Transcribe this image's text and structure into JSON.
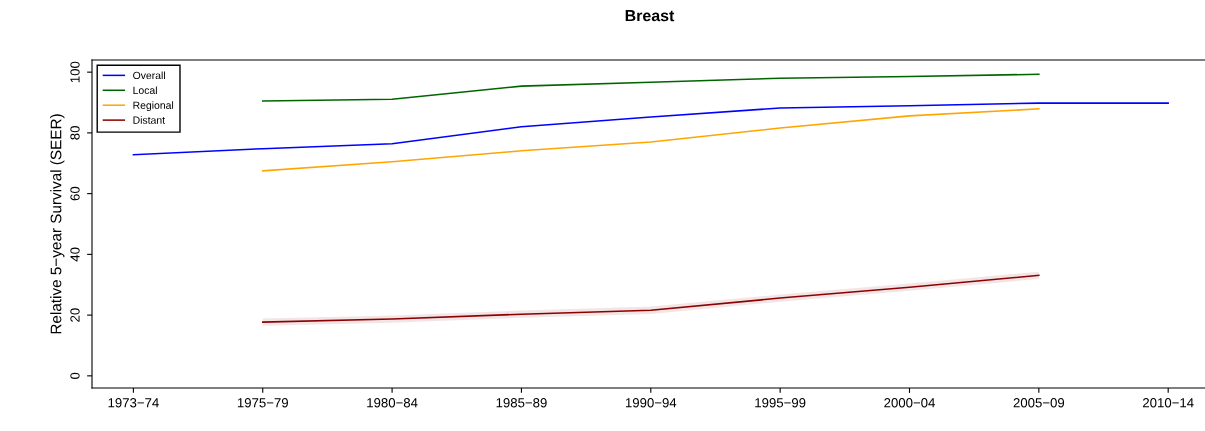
{
  "chart_data": {
    "type": "line",
    "title": "Breast",
    "ylabel": "Relative 5−year Survival (SEER)",
    "categories": [
      "1973−74",
      "1975−79",
      "1980−84",
      "1985−89",
      "1990−94",
      "1995−99",
      "2000−04",
      "2005−09",
      "2010−14"
    ],
    "series": [
      {
        "name": "Overall",
        "color": "#0000ff",
        "values": [
          72.8,
          74.8,
          76.4,
          82.0,
          85.2,
          88.2,
          88.9,
          89.8,
          89.8
        ]
      },
      {
        "name": "Local",
        "color": "#006400",
        "values": [
          null,
          90.5,
          91.1,
          95.4,
          96.7,
          98.0,
          98.6,
          99.3,
          null
        ]
      },
      {
        "name": "Regional",
        "color": "#ffa500",
        "values": [
          null,
          67.5,
          70.5,
          74.1,
          77.0,
          81.6,
          85.6,
          87.9,
          null
        ]
      },
      {
        "name": "Distant",
        "color": "#8b0000",
        "values": [
          null,
          17.7,
          18.7,
          20.3,
          21.6,
          25.6,
          29.2,
          33.1,
          null
        ],
        "lower": [
          null,
          16.5,
          17.5,
          19.1,
          20.4,
          24.4,
          28.0,
          31.9,
          null
        ],
        "upper": [
          null,
          18.9,
          19.9,
          21.5,
          22.8,
          26.8,
          30.4,
          34.3,
          null
        ]
      }
    ],
    "ylim": [
      -4,
      104
    ],
    "yticks": [
      0,
      20,
      40,
      60,
      80,
      100
    ],
    "grid": false,
    "legend": "top left"
  }
}
